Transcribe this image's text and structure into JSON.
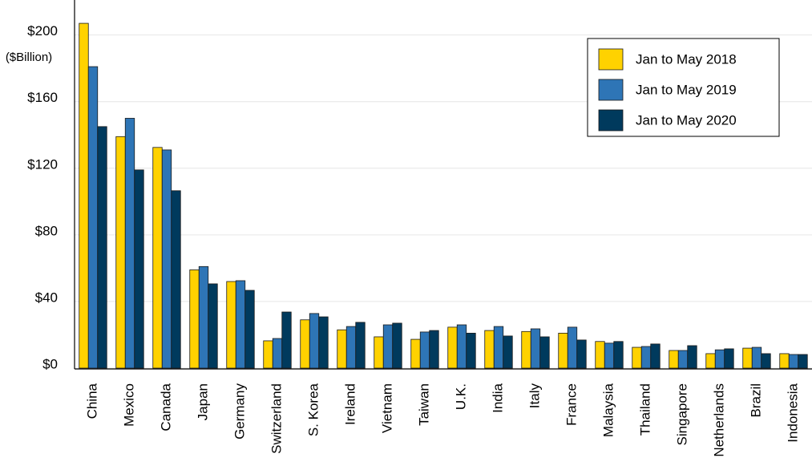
{
  "chart_data": {
    "type": "bar",
    "y_unit_label": "($Billion)",
    "categories": [
      "China",
      "Mexico",
      "Canada",
      "Japan",
      "Germany",
      "Switzerland",
      "S. Korea",
      "Ireland",
      "Vietnam",
      "Taiwan",
      "U.K.",
      "India",
      "Italy",
      "France",
      "Malaysia",
      "Thailand",
      "Singapore",
      "Netherlands",
      "Brazil",
      "Indonesia"
    ],
    "series": [
      {
        "name": "Jan to May 2018",
        "color": "#ffd200",
        "values": [
          207,
          139,
          132.5,
          59,
          52,
          16.4,
          29,
          23,
          18.8,
          17.3,
          24.6,
          22.6,
          22,
          21,
          16,
          12.5,
          10.6,
          8.7,
          12,
          8.7
        ]
      },
      {
        "name": "Jan to May 2019",
        "color": "#2e75b6",
        "values": [
          181,
          150,
          131,
          61,
          52.5,
          17.8,
          32.8,
          25,
          26,
          21.7,
          26,
          25,
          23.6,
          24.6,
          15,
          13,
          10.6,
          11,
          12.5,
          8.2
        ]
      },
      {
        "name": "Jan to May 2020",
        "color": "#003a5d",
        "values": [
          145,
          119,
          106.5,
          50.6,
          46.7,
          33.7,
          30.8,
          27.5,
          27,
          22.6,
          21,
          19.3,
          18.8,
          16.9,
          16,
          14.5,
          13.5,
          11.6,
          8.7,
          8.2
        ]
      }
    ],
    "ylim": [
      0,
      221
    ],
    "yticks": [
      {
        "value": 0,
        "label": "$0"
      },
      {
        "value": 40,
        "label": "$40"
      },
      {
        "value": 80,
        "label": "$80"
      },
      {
        "value": 120,
        "label": "$120"
      },
      {
        "value": 160,
        "label": "$160"
      },
      {
        "value": 200,
        "label": "$200"
      }
    ],
    "grid": true,
    "legend": "upper-right"
  }
}
